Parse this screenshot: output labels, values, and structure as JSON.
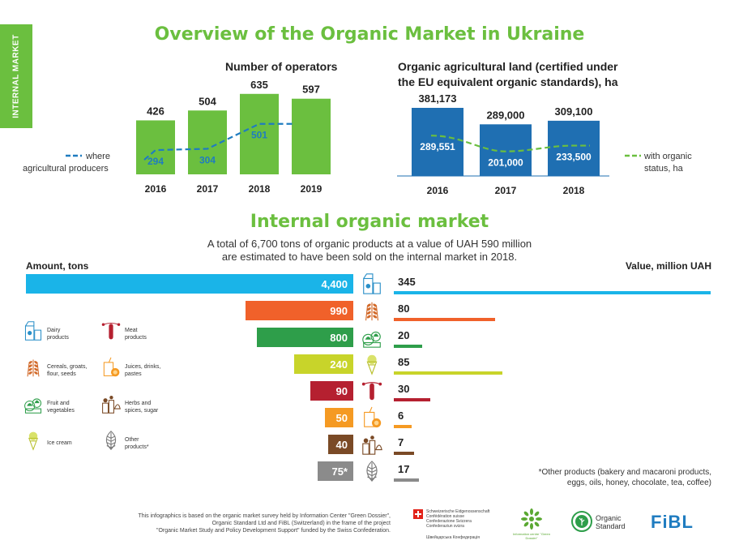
{
  "side_tab": "INTERNAL MARKET",
  "title": "Overview of the Organic Market in Ukraine",
  "operators_chart": {
    "type": "bar",
    "title": "Number of operators",
    "categories": [
      "2016",
      "2017",
      "2018",
      "2019"
    ],
    "values": [
      426,
      504,
      635,
      597
    ],
    "line_series": {
      "name": "where agricultural producers",
      "values": [
        294,
        304,
        501,
        null
      ]
    },
    "legend": {
      "line1": "where",
      "line2": "agricultural producers"
    },
    "colors": {
      "bar": "#6bbf3f",
      "line": "#1f7cc0"
    },
    "ylim": [
      0,
      700
    ]
  },
  "land_chart": {
    "type": "bar",
    "title_line1": "Organic agricultural land (certified under",
    "title_line2": "the EU equivalent organic standards), ha",
    "categories": [
      "2016",
      "2017",
      "2018"
    ],
    "values": [
      381173,
      289000,
      309100
    ],
    "value_labels": [
      "381,173",
      "289,000",
      "309,100"
    ],
    "line_series": {
      "name": "with organic status, ha",
      "values": [
        289551,
        201000,
        233500
      ],
      "labels": [
        "289,551",
        "201,000",
        "233,500"
      ]
    },
    "legend": {
      "line1": "with organic",
      "line2": "status, ha"
    },
    "colors": {
      "bar": "#1f6fb2",
      "line": "#6bbf3f"
    },
    "ylim": [
      0,
      400000
    ]
  },
  "market": {
    "title": "Internal organic market",
    "intro_line1": "A total of 6,700 tons of organic products at a value of UAH 590 million",
    "intro_line2": "are estimated to have been sold on the internal market in 2018.",
    "left_axis_label": "Amount, tons",
    "right_axis_label": "Value, million UAH"
  },
  "chart_data": {
    "type": "bar",
    "title": "Internal organic market",
    "categories": [
      "Dairy products",
      "Cereals, groats, flour, seeds",
      "Fruit and vegetables",
      "Ice cream",
      "Meat products",
      "Juices, drinks, pastes",
      "Herbs and spices, sugar",
      "Other products*"
    ],
    "series": [
      {
        "name": "Amount, tons",
        "values": [
          4400,
          990,
          800,
          240,
          90,
          50,
          40,
          75
        ],
        "labels": [
          "4,400",
          "990",
          "800",
          "240",
          "90",
          "50",
          "40",
          "75*"
        ]
      },
      {
        "name": "Value, million UAH",
        "values": [
          345,
          80,
          20,
          85,
          30,
          6,
          7,
          17
        ],
        "labels": [
          "345",
          "80",
          "20",
          "85",
          "30",
          "6",
          "7",
          "17"
        ]
      }
    ],
    "colors": [
      "#1ab4e8",
      "#f0612a",
      "#2e9e4a",
      "#c8d42a",
      "#b52030",
      "#f59a23",
      "#7a4a26",
      "#8b8b8b"
    ],
    "icons": [
      "milk-icon",
      "wheat-icon",
      "vegetables-icon",
      "ice-cream-icon",
      "sausage-icon",
      "juice-icon",
      "herbs-icon",
      "leaf-icon"
    ]
  },
  "product_legend": [
    {
      "label1": "Dairy",
      "label2": "products",
      "icon": "milk-icon"
    },
    {
      "label1": "Meat",
      "label2": "products",
      "icon": "sausage-icon"
    },
    {
      "label1": "Cereals, groats,",
      "label2": "flour, seeds",
      "icon": "wheat-icon"
    },
    {
      "label1": "Juices, drinks,",
      "label2": "pastes",
      "icon": "juice-icon"
    },
    {
      "label1": "Fruit and",
      "label2": "vegetables",
      "icon": "vegetables-icon"
    },
    {
      "label1": "Herbs and",
      "label2": "spices, sugar",
      "icon": "herbs-icon"
    },
    {
      "label1": "Ice cream",
      "label2": "",
      "icon": "ice-cream-icon"
    },
    {
      "label1": "Other",
      "label2": "products*",
      "icon": "leaf-icon"
    }
  ],
  "footnote": {
    "line1": "*Other products (bakery and macaroni products,",
    "line2": "eggs, oils, honey, chocolate, tea, coffee)"
  },
  "source": {
    "line1": "This infographics is based on the organic market survey held by Information Center \"Green Dossier\",",
    "line2": "Organic Standard Ltd and FiBL (Switzerland) in the frame of the project",
    "line3": "\"Organic Market Study and Policy Development Support\" funded by the Swiss Confederation."
  },
  "logos": {
    "swiss_line1": "Schweizerische Eidgenossenschaft",
    "swiss_line2": "Confédération suisse",
    "swiss_line3": "Confederazione Svizzera",
    "swiss_line4": "Confederaziun svizra",
    "swiss_ua": "Швейцарська Конфедерація",
    "green_dossier": "Information centre \"Green Dossier\"",
    "organic_standard_1": "Organic",
    "organic_standard_2": "Standard",
    "fibl": "FiBL"
  }
}
